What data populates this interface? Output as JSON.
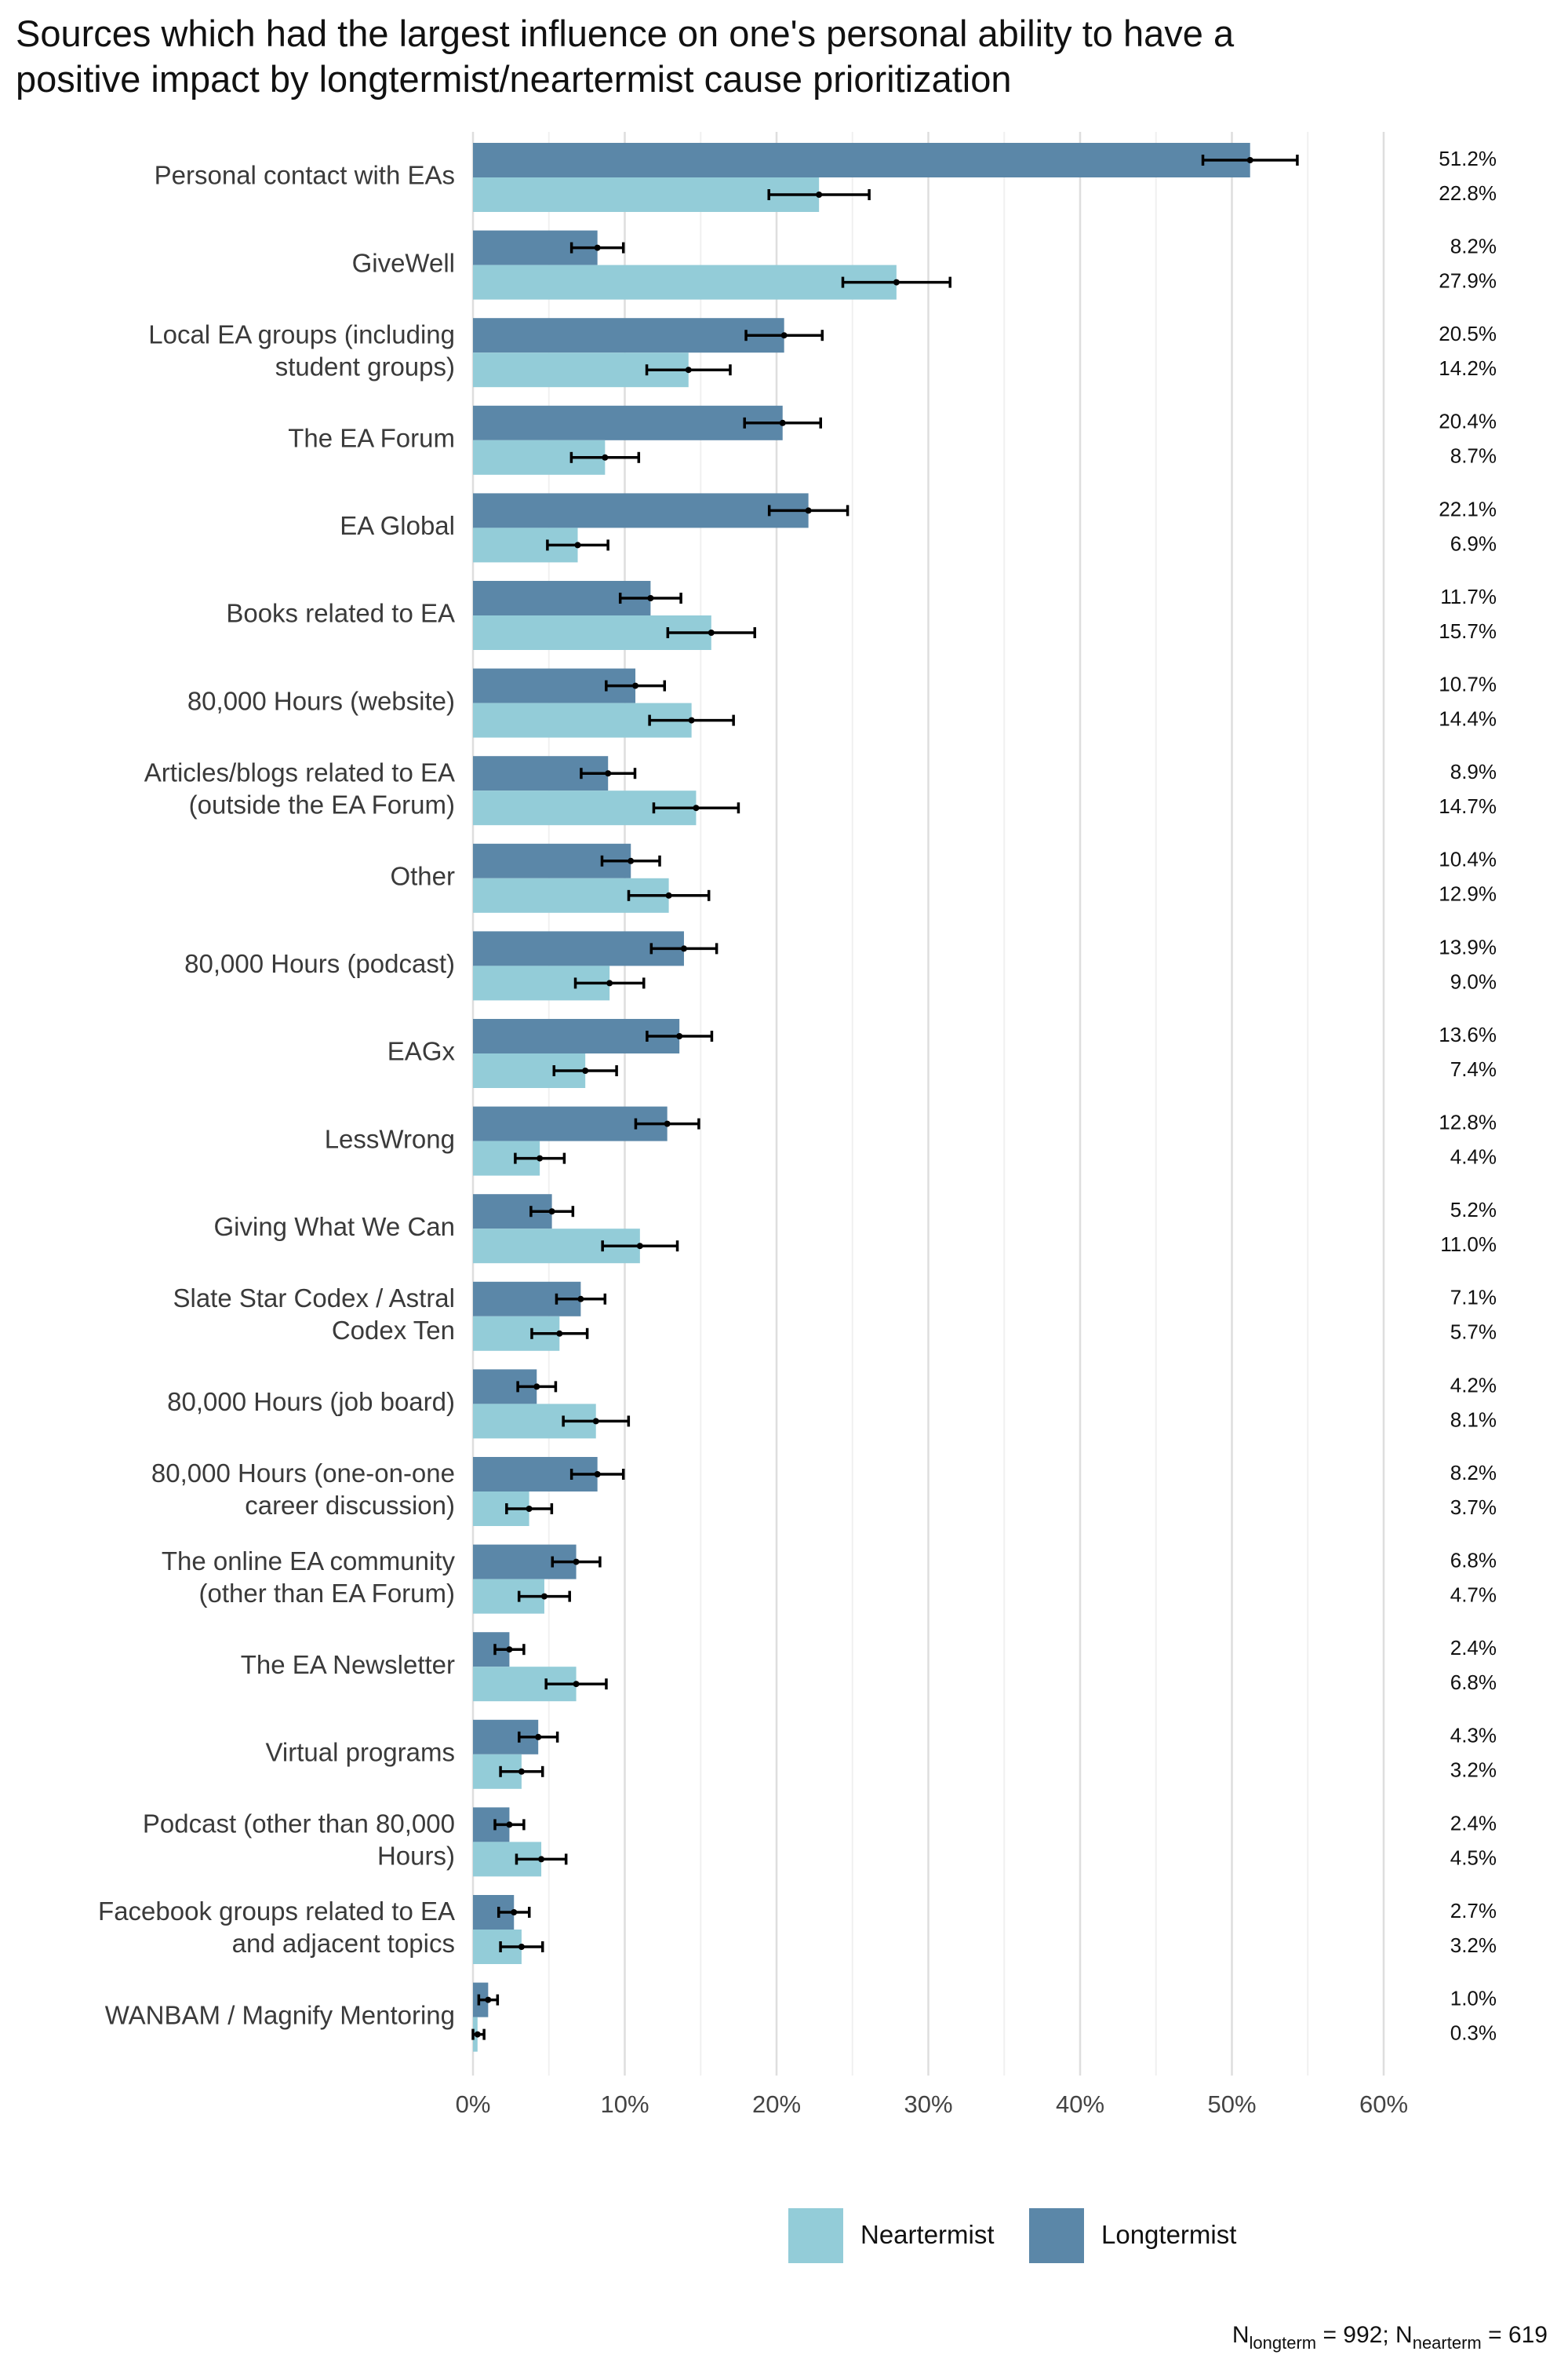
{
  "chart_data": {
    "type": "bar",
    "orientation": "horizontal",
    "title_lines": [
      "Sources which had the largest influence on one's personal ability to have a",
      "positive impact by longtermist/neartermist cause prioritization"
    ],
    "categories": [
      [
        "Personal contact with EAs"
      ],
      [
        "GiveWell"
      ],
      [
        "Local EA groups (including",
        "student groups)"
      ],
      [
        "The EA Forum"
      ],
      [
        "EA Global"
      ],
      [
        "Books related to EA"
      ],
      [
        "80,000 Hours (website)"
      ],
      [
        "Articles/blogs related to EA",
        "(outside the EA Forum)"
      ],
      [
        "Other"
      ],
      [
        "80,000 Hours (podcast)"
      ],
      [
        "EAGx"
      ],
      [
        "LessWrong"
      ],
      [
        "Giving What We Can"
      ],
      [
        "Slate Star Codex / Astral",
        "Codex Ten"
      ],
      [
        "80,000 Hours (job board)"
      ],
      [
        "80,000 Hours (one-on-one",
        "career discussion)"
      ],
      [
        "The online EA community",
        "(other than EA Forum)"
      ],
      [
        "The EA Newsletter"
      ],
      [
        "Virtual programs"
      ],
      [
        "Podcast (other than 80,000",
        "Hours)"
      ],
      [
        "Facebook groups related to EA",
        "and adjacent topics"
      ],
      [
        "WANBAM / Magnify Mentoring"
      ]
    ],
    "series": [
      {
        "name": "Longtermist",
        "color": "#5b87a8",
        "values": [
          51.2,
          8.2,
          20.5,
          20.4,
          22.1,
          11.7,
          10.7,
          8.9,
          10.4,
          13.9,
          13.6,
          12.8,
          5.2,
          7.1,
          4.2,
          8.2,
          6.8,
          2.4,
          4.3,
          2.4,
          2.7,
          1.0
        ],
        "labels": [
          "51.2%",
          "8.2%",
          "20.5%",
          "20.4%",
          "22.1%",
          "11.7%",
          "10.7%",
          "8.9%",
          "10.4%",
          "13.9%",
          "13.6%",
          "12.8%",
          "5.2%",
          "7.1%",
          "4.2%",
          "8.2%",
          "6.8%",
          "2.4%",
          "4.3%",
          "2.4%",
          "2.7%",
          "1.0%"
        ]
      },
      {
        "name": "Neartermist",
        "color": "#93ccd8",
        "values": [
          22.8,
          27.9,
          14.2,
          8.7,
          6.9,
          15.7,
          14.4,
          14.7,
          12.9,
          9.0,
          7.4,
          4.4,
          11.0,
          5.7,
          8.1,
          3.7,
          4.7,
          6.8,
          3.2,
          4.5,
          3.2,
          0.3
        ],
        "labels": [
          "22.8%",
          "27.9%",
          "14.2%",
          "8.7%",
          "6.9%",
          "15.7%",
          "14.4%",
          "14.7%",
          "12.9%",
          "9.0%",
          "7.4%",
          "4.4%",
          "11.0%",
          "5.7%",
          "8.1%",
          "3.7%",
          "4.7%",
          "6.8%",
          "3.2%",
          "4.5%",
          "3.2%",
          "0.3%"
        ]
      }
    ],
    "x_ticks": [
      "0%",
      "10%",
      "20%",
      "30%",
      "40%",
      "50%",
      "60%"
    ],
    "xlim": [
      0,
      60
    ],
    "error_bars": true,
    "grid": "vertical",
    "legend": {
      "position": "bottom-right",
      "items": [
        {
          "label": "Neartermist",
          "color": "#93ccd8"
        },
        {
          "label": "Longtermist",
          "color": "#5b87a8"
        }
      ]
    },
    "sample_note": {
      "n_longterm_letter": "N",
      "n_longterm_sub": "longterm",
      "n_longterm_value": " = 992; ",
      "n_nearterm_letter": "N",
      "n_nearterm_sub": "nearterm",
      "n_nearterm_value": " = 619"
    }
  }
}
